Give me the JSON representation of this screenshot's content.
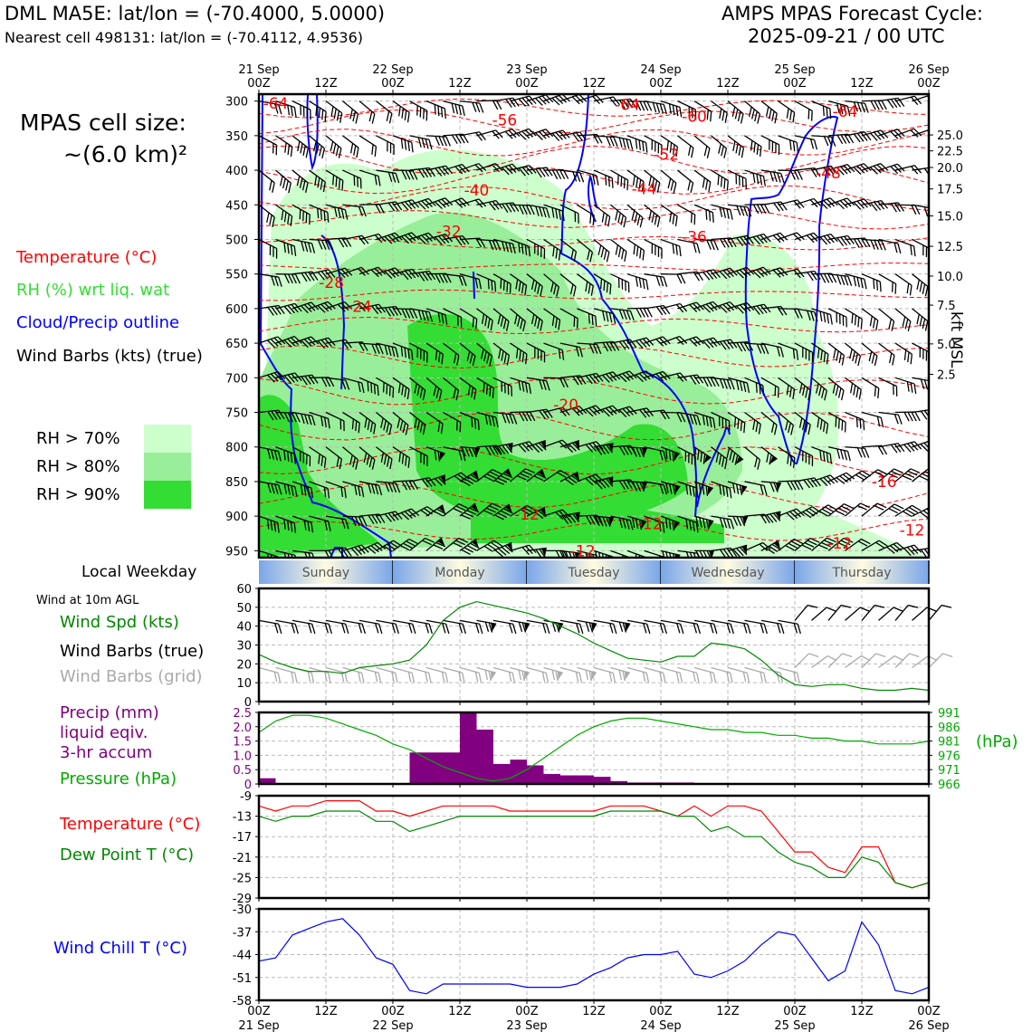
{
  "header": {
    "title": "DML MA5E: lat/lon = (-70.4000, 5.0000)",
    "subtitle": "Nearest cell 498131: lat/lon = (-70.4112, 4.9536)",
    "cycle_title": "AMPS MPAS Forecast Cycle:",
    "cycle_time": "2025-09-21 / 00 UTC"
  },
  "legend": {
    "cell_size_label": "MPAS cell size:",
    "cell_size_value": "~(6.0 km)²",
    "temperature": "Temperature (°C)",
    "rh": "RH (%) wrt liq. wat",
    "cloud": "Cloud/Precip outline",
    "barbs": "Wind Barbs (kts) (true)",
    "rh_bins": [
      {
        "label": "RH > 70%",
        "color": "#ccffcc"
      },
      {
        "label": "RH > 80%",
        "color": "#99ee99"
      },
      {
        "label": "RH > 90%",
        "color": "#33dd33"
      }
    ]
  },
  "time_axis": {
    "top_labels": [
      {
        "t": 0,
        "top": "21 Sep",
        "bottom": "00Z"
      },
      {
        "t": 12,
        "top": "",
        "bottom": "12Z"
      },
      {
        "t": 24,
        "top": "22 Sep",
        "bottom": "00Z"
      },
      {
        "t": 36,
        "top": "",
        "bottom": "12Z"
      },
      {
        "t": 48,
        "top": "23 Sep",
        "bottom": "00Z"
      },
      {
        "t": 60,
        "top": "",
        "bottom": "12Z"
      },
      {
        "t": 72,
        "top": "24 Sep",
        "bottom": "00Z"
      },
      {
        "t": 84,
        "top": "",
        "bottom": "12Z"
      },
      {
        "t": 96,
        "top": "25 Sep",
        "bottom": "00Z"
      },
      {
        "t": 108,
        "top": "",
        "bottom": "12Z"
      },
      {
        "t": 120,
        "top": "26 Sep",
        "bottom": "00Z"
      }
    ],
    "bottom_labels": [
      {
        "t": 0,
        "top": "00Z",
        "bottom": "21 Sep"
      },
      {
        "t": 12,
        "top": "12Z",
        "bottom": ""
      },
      {
        "t": 24,
        "top": "00Z",
        "bottom": "22 Sep"
      },
      {
        "t": 36,
        "top": "12Z",
        "bottom": ""
      },
      {
        "t": 48,
        "top": "00Z",
        "bottom": "23 Sep"
      },
      {
        "t": 60,
        "top": "12Z",
        "bottom": ""
      },
      {
        "t": 72,
        "top": "00Z",
        "bottom": "24 Sep"
      },
      {
        "t": 84,
        "top": "12Z",
        "bottom": ""
      },
      {
        "t": 96,
        "top": "00Z",
        "bottom": "25 Sep"
      },
      {
        "t": 108,
        "top": "12Z",
        "bottom": ""
      },
      {
        "t": 120,
        "top": "00Z",
        "bottom": "26 Sep"
      }
    ]
  },
  "weekday": {
    "label": "Local Weekday",
    "days": [
      "Sunday",
      "Monday",
      "Tuesday",
      "Wednesday",
      "Thursday"
    ]
  },
  "wind10_labels": {
    "heading": "Wind at 10m AGL",
    "speed": "Wind Spd (kts)",
    "barbs_true": "Wind Barbs (true)",
    "barbs_grid": "Wind Barbs (grid)"
  },
  "precip_labels": {
    "line1": "Precip (mm)",
    "line2": "liquid eqiv.",
    "line3": "3-hr accum",
    "pressure": "Pressure (hPa)",
    "unit_right": "(hPa)"
  },
  "temp_labels": {
    "temperature": "Temperature (°C)",
    "dewpoint": "Dew Point T (°C)"
  },
  "chill_labels": {
    "windchill": "Wind Chill T (°C)"
  },
  "colors": {
    "temperature": "#ff0000",
    "rh_line": "#008800",
    "cloud": "#0000ff",
    "precip": "#800080",
    "pressure": "#00aa00",
    "windchill": "#0000ff",
    "grid_barbs": "#aaaaaa"
  },
  "chart_data": [
    {
      "type": "heatmap",
      "y_ticks": [
        300,
        350,
        400,
        450,
        500,
        550,
        600,
        650,
        700,
        750,
        800,
        850,
        900,
        950
      ],
      "ylim": [
        290,
        960
      ],
      "xlim": [
        0,
        120
      ],
      "right_axis_label": "kft MSL",
      "right_ticks": [
        {
          "p": 349,
          "label": "25.0"
        },
        {
          "p": 372,
          "label": "22.5"
        },
        {
          "p": 396,
          "label": "20.0"
        },
        {
          "p": 427,
          "label": "17.5"
        },
        {
          "p": 466,
          "label": "15.0"
        },
        {
          "p": 510,
          "label": "12.5"
        },
        {
          "p": 553,
          "label": "10.0"
        },
        {
          "p": 595,
          "label": "7.5"
        },
        {
          "p": 651,
          "label": "5.0"
        },
        {
          "p": 695,
          "label": "2.5"
        }
      ],
      "temperature_labels": [
        {
          "t": 3,
          "p": 303,
          "label": "-64"
        },
        {
          "t": 44,
          "p": 327,
          "label": "-56"
        },
        {
          "t": 66,
          "p": 305,
          "label": "-64"
        },
        {
          "t": 78,
          "p": 322,
          "label": "-60"
        },
        {
          "t": 105,
          "p": 315,
          "label": "-64"
        },
        {
          "t": 73,
          "p": 377,
          "label": "-52"
        },
        {
          "t": 102,
          "p": 404,
          "label": "-48"
        },
        {
          "t": 39,
          "p": 429,
          "label": "-40"
        },
        {
          "t": 69,
          "p": 427,
          "label": "-44"
        },
        {
          "t": 34,
          "p": 488,
          "label": "-32"
        },
        {
          "t": 78,
          "p": 496,
          "label": "-36"
        },
        {
          "t": 13,
          "p": 562,
          "label": "-28"
        },
        {
          "t": 18,
          "p": 597,
          "label": "-24"
        },
        {
          "t": 55,
          "p": 739,
          "label": "-20"
        },
        {
          "t": 112,
          "p": 850,
          "label": "-16"
        },
        {
          "t": 48,
          "p": 897,
          "label": "-12"
        },
        {
          "t": 70,
          "p": 911,
          "label": "-12"
        },
        {
          "t": 58,
          "p": 950,
          "label": "-12"
        },
        {
          "t": 104,
          "p": 939,
          "label": "-12"
        },
        {
          "t": 117,
          "p": 920,
          "label": "-12"
        }
      ]
    },
    {
      "type": "line",
      "ylim": [
        0,
        60
      ],
      "y_ticks": [
        0,
        10,
        20,
        30,
        40,
        50,
        60
      ],
      "x": [
        0,
        3,
        6,
        9,
        12,
        15,
        18,
        21,
        24,
        27,
        30,
        33,
        36,
        39,
        42,
        45,
        48,
        51,
        54,
        57,
        60,
        63,
        66,
        69,
        72,
        75,
        78,
        81,
        84,
        87,
        90,
        93,
        96,
        99,
        102,
        105,
        108,
        111,
        114,
        117,
        120
      ],
      "series": [
        {
          "values": [
            25,
            21,
            18,
            16,
            16,
            15,
            18,
            19,
            20,
            22,
            30,
            43,
            50,
            53,
            51,
            49,
            47,
            44,
            40,
            36,
            31,
            27,
            23,
            22,
            21,
            24,
            24,
            31,
            30,
            28,
            22,
            14,
            9,
            8,
            9,
            9,
            7,
            6,
            6,
            7,
            6
          ]
        }
      ],
      "barb_row_true": 43,
      "barb_row_grid": 18
    },
    {
      "type": "bar",
      "ylim": [
        0,
        2.5
      ],
      "y_ticks": [
        0,
        0.5,
        1.0,
        1.5,
        2.0,
        2.5
      ],
      "bar_width_hours": 3,
      "bars": [
        {
          "t": 0,
          "v": 0.2
        },
        {
          "t": 27,
          "v": 1.1
        },
        {
          "t": 30,
          "v": 1.1
        },
        {
          "t": 33,
          "v": 1.1
        },
        {
          "t": 36,
          "v": 2.5
        },
        {
          "t": 39,
          "v": 1.9
        },
        {
          "t": 42,
          "v": 0.7
        },
        {
          "t": 45,
          "v": 0.85
        },
        {
          "t": 48,
          "v": 0.65
        },
        {
          "t": 51,
          "v": 0.35
        },
        {
          "t": 54,
          "v": 0.3
        },
        {
          "t": 57,
          "v": 0.3
        },
        {
          "t": 60,
          "v": 0.25
        },
        {
          "t": 63,
          "v": 0.1
        },
        {
          "t": 66,
          "v": 0.05
        },
        {
          "t": 69,
          "v": 0.05
        },
        {
          "t": 72,
          "v": 0.05
        },
        {
          "t": 75,
          "v": 0.05
        }
      ],
      "pressure_ylim": [
        966,
        991
      ],
      "pressure_ticks": [
        966,
        971,
        976,
        981,
        986,
        991
      ],
      "pressure": {
        "x": [
          0,
          3,
          6,
          9,
          12,
          15,
          18,
          21,
          24,
          27,
          30,
          33,
          36,
          39,
          42,
          45,
          48,
          51,
          54,
          57,
          60,
          63,
          66,
          69,
          72,
          75,
          78,
          81,
          84,
          87,
          90,
          93,
          96,
          99,
          102,
          105,
          108,
          111,
          114,
          117,
          120
        ],
        "values": [
          984,
          988,
          990,
          990,
          989,
          987,
          985,
          983,
          980,
          978,
          975,
          972,
          970,
          968,
          967,
          968,
          971,
          975,
          979,
          983,
          986,
          988,
          989,
          989,
          988,
          987,
          986,
          985,
          985,
          984,
          984,
          983,
          983,
          982,
          982,
          981,
          981,
          980,
          980,
          980,
          981
        ]
      }
    },
    {
      "type": "line",
      "ylim": [
        -29,
        -9
      ],
      "y_ticks": [
        -9,
        -13,
        -17,
        -21,
        -25,
        -29
      ],
      "x": [
        0,
        3,
        6,
        9,
        12,
        15,
        18,
        21,
        24,
        27,
        30,
        33,
        36,
        39,
        42,
        45,
        48,
        51,
        54,
        57,
        60,
        63,
        66,
        69,
        72,
        75,
        78,
        81,
        84,
        87,
        90,
        93,
        96,
        99,
        102,
        105,
        108,
        111,
        114,
        117,
        120
      ],
      "series": [
        {
          "values": [
            -11,
            -12,
            -11,
            -11,
            -10,
            -10,
            -10,
            -12,
            -12,
            -13,
            -12,
            -11,
            -11,
            -11,
            -11,
            -12,
            -12,
            -12,
            -12,
            -12,
            -12,
            -11,
            -11,
            -11,
            -12,
            -13,
            -11,
            -13,
            -11,
            -11,
            -12,
            -16,
            -20,
            -20,
            -23,
            -24,
            -19,
            -19,
            -26,
            -27,
            -26
          ]
        },
        {
          "values": [
            -13,
            -14,
            -13,
            -13,
            -12,
            -12,
            -12,
            -14,
            -14,
            -16,
            -15,
            -14,
            -13,
            -13,
            -13,
            -13,
            -13,
            -13,
            -13,
            -13,
            -13,
            -12,
            -12,
            -12,
            -12,
            -13,
            -13,
            -16,
            -15,
            -17,
            -17,
            -20,
            -22,
            -23,
            -25,
            -25,
            -21,
            -22,
            -26,
            -27,
            -26
          ]
        }
      ]
    },
    {
      "type": "line",
      "ylim": [
        -58,
        -30
      ],
      "y_ticks": [
        -30,
        -37,
        -44,
        -51,
        -58
      ],
      "x": [
        0,
        3,
        6,
        9,
        12,
        15,
        18,
        21,
        24,
        27,
        30,
        33,
        36,
        39,
        42,
        45,
        48,
        51,
        54,
        57,
        60,
        63,
        66,
        69,
        72,
        75,
        78,
        81,
        84,
        87,
        90,
        93,
        96,
        99,
        102,
        105,
        108,
        111,
        114,
        117,
        120
      ],
      "series": [
        {
          "values": [
            -46,
            -45,
            -38,
            -36,
            -34,
            -33,
            -38,
            -45,
            -47,
            -55,
            -56,
            -53,
            -53,
            -53,
            -53,
            -53,
            -54,
            -54,
            -54,
            -53,
            -50,
            -48,
            -45,
            -44,
            -44,
            -43,
            -50,
            -51,
            -49,
            -46,
            -41,
            -37,
            -38,
            -45,
            -52,
            -49,
            -34,
            -41,
            -55,
            -56,
            -54
          ]
        }
      ]
    }
  ]
}
